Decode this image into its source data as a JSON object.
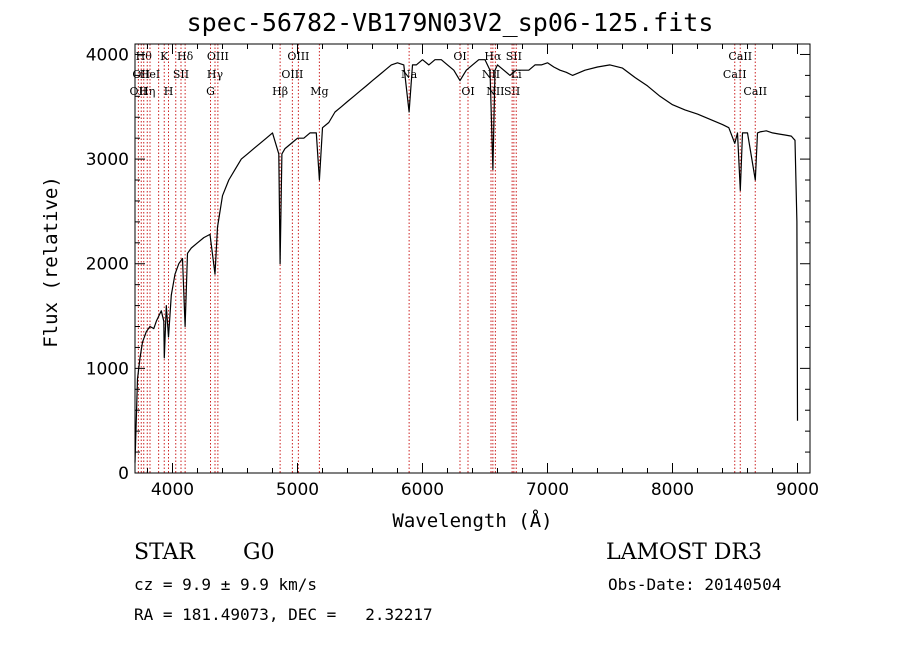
{
  "chart_data": {
    "type": "line",
    "title": "spec-56782-VB179N03V2_sp06-125.fits",
    "xlabel": "Wavelength (Å)",
    "ylabel": "Flux (relative)",
    "xlim": [
      3700,
      9100
    ],
    "ylim": [
      0,
      4100
    ],
    "xticks": [
      4000,
      5000,
      6000,
      7000,
      8000,
      9000
    ],
    "yticks": [
      0,
      1000,
      2000,
      3000,
      4000
    ],
    "grid": false,
    "series": [
      {
        "name": "spectrum",
        "color": "#000000",
        "x": [
          3700,
          3720,
          3740,
          3760,
          3790,
          3820,
          3850,
          3870,
          3890,
          3910,
          3930,
          3934,
          3950,
          3968,
          3990,
          4020,
          4050,
          4080,
          4101,
          4120,
          4150,
          4200,
          4250,
          4300,
          4340,
          4360,
          4400,
          4450,
          4500,
          4550,
          4600,
          4650,
          4700,
          4750,
          4800,
          4850,
          4861,
          4875,
          4900,
          4950,
          5000,
          5050,
          5100,
          5150,
          5175,
          5200,
          5250,
          5300,
          5350,
          5400,
          5450,
          5500,
          5550,
          5600,
          5650,
          5700,
          5750,
          5800,
          5850,
          5893,
          5920,
          5950,
          6000,
          6050,
          6100,
          6150,
          6200,
          6250,
          6300,
          6350,
          6400,
          6450,
          6500,
          6540,
          6563,
          6580,
          6600,
          6650,
          6700,
          6750,
          6800,
          6850,
          6900,
          6950,
          7000,
          7050,
          7100,
          7150,
          7200,
          7300,
          7400,
          7500,
          7600,
          7700,
          7800,
          7900,
          8000,
          8100,
          8200,
          8300,
          8400,
          8450,
          8498,
          8520,
          8542,
          8560,
          8600,
          8662,
          8680,
          8700,
          8750,
          8800,
          8850,
          8900,
          8950,
          8980,
          8995,
          9000
        ],
        "y": [
          100,
          900,
          1100,
          1250,
          1350,
          1400,
          1380,
          1450,
          1500,
          1550,
          1450,
          1100,
          1600,
          1300,
          1700,
          1900,
          2000,
          2050,
          1400,
          2100,
          2150,
          2200,
          2250,
          2280,
          1900,
          2350,
          2650,
          2800,
          2900,
          3000,
          3050,
          3100,
          3150,
          3200,
          3250,
          3050,
          2000,
          3050,
          3100,
          3150,
          3200,
          3200,
          3250,
          3250,
          2800,
          3300,
          3350,
          3450,
          3500,
          3550,
          3600,
          3650,
          3700,
          3750,
          3800,
          3850,
          3900,
          3920,
          3900,
          3450,
          3900,
          3900,
          3950,
          3900,
          3950,
          3950,
          3900,
          3850,
          3750,
          3850,
          3900,
          3950,
          3950,
          3850,
          2900,
          3850,
          3900,
          3850,
          3800,
          3850,
          3850,
          3850,
          3900,
          3900,
          3920,
          3880,
          3850,
          3830,
          3800,
          3850,
          3880,
          3900,
          3870,
          3780,
          3700,
          3600,
          3520,
          3470,
          3430,
          3380,
          3330,
          3300,
          3150,
          3250,
          2700,
          3250,
          3250,
          2800,
          3250,
          3260,
          3270,
          3250,
          3240,
          3230,
          3220,
          3180,
          2400,
          500
        ]
      }
    ],
    "lines": {
      "color": "#cc2222",
      "items": [
        {
          "w": 3727,
          "label": "OII",
          "row": 2
        },
        {
          "w": 3750,
          "label": "OII",
          "row": 1
        },
        {
          "w": 3770,
          "label": "Hθ",
          "row": 0
        },
        {
          "w": 3798,
          "label": "Hη",
          "row": 2
        },
        {
          "w": 3820,
          "label": "HeI",
          "row": 1
        },
        {
          "w": 3889,
          "label": "",
          "row": 0
        },
        {
          "w": 3934,
          "label": "K",
          "row": 0
        },
        {
          "w": 3968,
          "label": "H",
          "row": 2
        },
        {
          "w": 4026,
          "label": "",
          "row": 1
        },
        {
          "w": 4068,
          "label": "SII",
          "row": 1
        },
        {
          "w": 4101,
          "label": "Hδ",
          "row": 0
        },
        {
          "w": 4304,
          "label": "G",
          "row": 2
        },
        {
          "w": 4340,
          "label": "Hγ",
          "row": 1
        },
        {
          "w": 4363,
          "label": "OIII",
          "row": 0
        },
        {
          "w": 4861,
          "label": "Hβ",
          "row": 2
        },
        {
          "w": 4959,
          "label": "OIII",
          "row": 1
        },
        {
          "w": 5007,
          "label": "OIII",
          "row": 0
        },
        {
          "w": 5175,
          "label": "Mg",
          "row": 2
        },
        {
          "w": 5893,
          "label": "Na",
          "row": 1
        },
        {
          "w": 6300,
          "label": "OI",
          "row": 0
        },
        {
          "w": 6364,
          "label": "OI",
          "row": 2
        },
        {
          "w": 6548,
          "label": "NII",
          "row": 1
        },
        {
          "w": 6563,
          "label": "Hα",
          "row": 0
        },
        {
          "w": 6583,
          "label": "NII",
          "row": 2
        },
        {
          "w": 6717,
          "label": "SII",
          "row": 2
        },
        {
          "w": 6731,
          "label": "SII",
          "row": 0
        },
        {
          "w": 6750,
          "label": "Li",
          "row": 1
        },
        {
          "w": 8498,
          "label": "CaII",
          "row": 1
        },
        {
          "w": 8542,
          "label": "CaII",
          "row": 0
        },
        {
          "w": 8662,
          "label": "CaII",
          "row": 2
        }
      ]
    }
  },
  "info": {
    "class": "STAR",
    "subclass": "G0",
    "survey": "LAMOST DR3",
    "cz": "cz = 9.9 ± 9.9 km/s",
    "obs_date": "Obs-Date: 20140504",
    "radec": "RA = 181.49073, DEC =   2.32217"
  }
}
